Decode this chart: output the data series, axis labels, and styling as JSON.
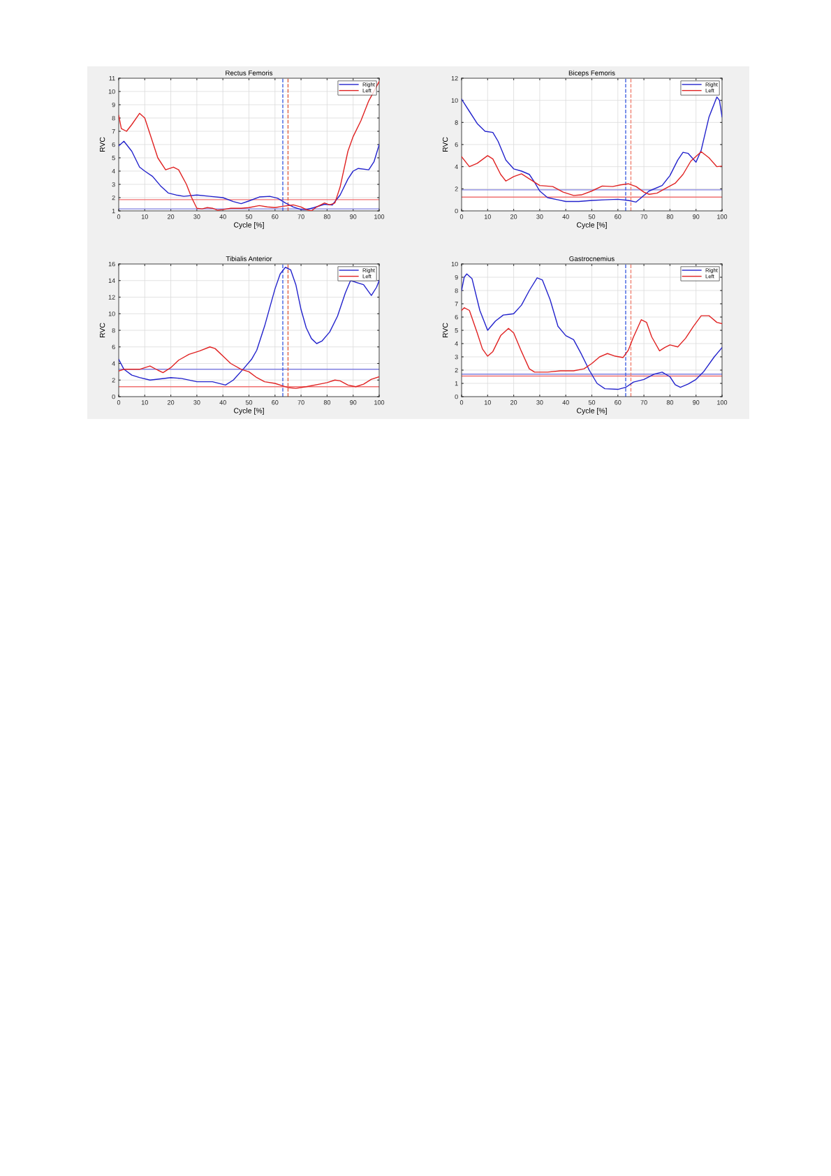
{
  "chart_data": [
    {
      "type": "line",
      "title": "Rectus Femoris",
      "xlabel": "Cycle [%]",
      "ylabel": "RVC",
      "xlim": [
        0,
        100
      ],
      "xticks": [
        0,
        10,
        20,
        30,
        40,
        50,
        60,
        70,
        80,
        90,
        100
      ],
      "ylim": [
        1,
        11
      ],
      "yticks": [
        1,
        2,
        3,
        4,
        5,
        6,
        7,
        8,
        9,
        10,
        11
      ],
      "grid": true,
      "legend": "top right",
      "line_style": "solid",
      "marker": "none",
      "series": [
        {
          "name": "Right",
          "color": "#2222cc",
          "x": [
            0,
            2,
            5,
            8,
            10,
            13,
            16,
            19,
            22,
            25,
            30,
            35,
            40,
            44,
            47,
            50,
            54,
            58,
            61,
            64,
            67,
            70,
            72,
            75,
            79,
            82,
            85,
            88,
            90,
            92,
            96,
            98,
            100
          ],
          "values": [
            5.9,
            6.25,
            5.5,
            4.3,
            4.0,
            3.6,
            2.9,
            2.35,
            2.2,
            2.1,
            2.2,
            2.1,
            2.0,
            1.7,
            1.55,
            1.75,
            2.05,
            2.1,
            1.95,
            1.6,
            1.3,
            1.1,
            1.1,
            1.25,
            1.5,
            1.45,
            2.2,
            3.4,
            4.0,
            4.2,
            4.1,
            4.7,
            6.0
          ]
        },
        {
          "name": "Left",
          "color": "#e02222",
          "x": [
            0,
            1,
            3,
            5,
            8,
            10,
            12,
            15,
            18,
            21,
            23,
            26,
            28,
            30,
            32,
            34,
            36,
            38,
            40,
            43,
            47,
            50,
            54,
            57,
            60,
            63,
            67,
            70,
            72,
            74,
            76,
            79,
            81,
            83,
            85,
            88,
            90,
            93,
            96,
            100
          ],
          "values": [
            8.2,
            7.2,
            7.0,
            7.5,
            8.35,
            8.0,
            6.8,
            5.0,
            4.1,
            4.3,
            4.1,
            3.0,
            2.0,
            1.2,
            1.15,
            1.25,
            1.2,
            1.05,
            1.1,
            1.2,
            1.2,
            1.25,
            1.4,
            1.3,
            1.25,
            1.35,
            1.45,
            1.3,
            1.1,
            1.0,
            1.3,
            1.6,
            1.45,
            1.6,
            2.8,
            5.5,
            6.6,
            7.8,
            9.3,
            10.75
          ]
        }
      ],
      "ref_lines": [
        {
          "axis": "y",
          "value": 1.85,
          "color": "#f07070",
          "line_style": "solid"
        },
        {
          "axis": "y",
          "value": 1.15,
          "color": "#8080e0",
          "line_style": "solid"
        },
        {
          "axis": "x",
          "value": 63,
          "color": "#4060e0",
          "line_style": "dashed"
        },
        {
          "axis": "x",
          "value": 65,
          "color": "#e06040",
          "line_style": "dashed"
        }
      ]
    },
    {
      "type": "line",
      "title": "Biceps Femoris",
      "xlabel": "Cycle [%]",
      "ylabel": "RVC",
      "xlim": [
        0,
        100
      ],
      "xticks": [
        0,
        10,
        20,
        30,
        40,
        50,
        60,
        70,
        80,
        90,
        100
      ],
      "ylim": [
        0,
        12
      ],
      "yticks": [
        0,
        2,
        4,
        6,
        8,
        10,
        12
      ],
      "grid": true,
      "legend": "top right",
      "line_style": "solid",
      "marker": "none",
      "series": [
        {
          "name": "Right",
          "color": "#2222cc",
          "x": [
            0,
            3,
            6,
            9,
            12,
            14,
            17,
            20,
            23,
            26,
            28,
            30,
            33,
            37,
            40,
            45,
            50,
            55,
            60,
            64,
            67,
            69,
            72,
            77,
            80,
            83,
            85,
            87,
            90,
            92,
            95,
            98,
            99,
            100
          ],
          "values": [
            10.1,
            9.0,
            7.9,
            7.2,
            7.1,
            6.3,
            4.6,
            3.8,
            3.6,
            3.3,
            2.6,
            1.8,
            1.2,
            1.0,
            0.85,
            0.85,
            0.95,
            1.0,
            1.05,
            0.95,
            0.8,
            1.2,
            1.8,
            2.3,
            3.2,
            4.6,
            5.3,
            5.2,
            4.4,
            5.5,
            8.5,
            10.3,
            10.0,
            8.5
          ]
        },
        {
          "name": "Left",
          "color": "#e02222",
          "x": [
            0,
            3,
            6,
            10,
            12,
            15,
            17,
            20,
            23,
            26,
            28,
            30,
            35,
            39,
            43,
            46,
            50,
            54,
            58,
            61,
            64,
            67,
            70,
            72,
            75,
            78,
            82,
            85,
            88,
            92,
            95,
            98,
            100
          ],
          "values": [
            4.9,
            4.0,
            4.3,
            5.0,
            4.7,
            3.3,
            2.7,
            3.1,
            3.35,
            2.9,
            2.6,
            2.3,
            2.2,
            1.7,
            1.4,
            1.45,
            1.8,
            2.25,
            2.2,
            2.35,
            2.45,
            2.2,
            1.7,
            1.5,
            1.6,
            2.0,
            2.5,
            3.3,
            4.5,
            5.35,
            4.8,
            4.0,
            4.05
          ]
        }
      ],
      "ref_lines": [
        {
          "axis": "y",
          "value": 1.9,
          "color": "#8080e0",
          "line_style": "solid"
        },
        {
          "axis": "y",
          "value": 1.25,
          "color": "#f07070",
          "line_style": "solid"
        },
        {
          "axis": "x",
          "value": 63,
          "color": "#4060e0",
          "line_style": "dashed"
        },
        {
          "axis": "x",
          "value": 65,
          "color": "#f08070",
          "line_style": "dashed"
        }
      ]
    },
    {
      "type": "line",
      "title": "Tibialis Anterior",
      "xlabel": "Cycle [%]",
      "ylabel": "RVC",
      "xlim": [
        0,
        100
      ],
      "xticks": [
        0,
        10,
        20,
        30,
        40,
        50,
        60,
        70,
        80,
        90,
        100
      ],
      "ylim": [
        0,
        16
      ],
      "yticks": [
        0,
        2,
        4,
        6,
        8,
        10,
        12,
        14,
        16
      ],
      "grid": true,
      "legend": "top right",
      "line_style": "solid",
      "marker": "none",
      "series": [
        {
          "name": "Right",
          "color": "#2222cc",
          "x": [
            0,
            2,
            5,
            8,
            12,
            15,
            20,
            24,
            30,
            36,
            41,
            44,
            48,
            51,
            53,
            56,
            60,
            62,
            64,
            66,
            68,
            70,
            72,
            74,
            76,
            78,
            81,
            84,
            87,
            89,
            94,
            97,
            99,
            100
          ],
          "values": [
            4.5,
            3.3,
            2.6,
            2.3,
            2.0,
            2.1,
            2.3,
            2.2,
            1.8,
            1.8,
            1.4,
            2.0,
            3.4,
            4.5,
            5.6,
            8.5,
            13.0,
            14.8,
            15.6,
            15.3,
            13.5,
            10.5,
            8.3,
            7.0,
            6.4,
            6.7,
            7.8,
            9.7,
            12.5,
            14.0,
            13.5,
            12.2,
            13.2,
            14.0
          ]
        },
        {
          "name": "Left",
          "color": "#e02222",
          "x": [
            0,
            2,
            5,
            8,
            12,
            15,
            17,
            20,
            23,
            27,
            31,
            35,
            37,
            40,
            43,
            47,
            50,
            53,
            56,
            60,
            63,
            65,
            68,
            72,
            77,
            80,
            83,
            85,
            88,
            91,
            94,
            97,
            100
          ],
          "values": [
            3.1,
            3.3,
            3.3,
            3.3,
            3.7,
            3.2,
            2.9,
            3.5,
            4.4,
            5.1,
            5.5,
            6.0,
            5.8,
            4.9,
            4.0,
            3.3,
            3.0,
            2.3,
            1.8,
            1.6,
            1.3,
            1.1,
            1.0,
            1.2,
            1.5,
            1.7,
            2.0,
            1.9,
            1.4,
            1.2,
            1.5,
            2.1,
            2.4
          ]
        }
      ],
      "ref_lines": [
        {
          "axis": "y",
          "value": 3.3,
          "color": "#8080e0",
          "line_style": "solid"
        },
        {
          "axis": "y",
          "value": 1.2,
          "color": "#f07070",
          "line_style": "solid"
        },
        {
          "axis": "x",
          "value": 63,
          "color": "#4060e0",
          "line_style": "dashed"
        },
        {
          "axis": "x",
          "value": 65,
          "color": "#e06040",
          "line_style": "dashed"
        }
      ]
    },
    {
      "type": "line",
      "title": "Gastrocnemius",
      "xlabel": "Cycle [%]",
      "ylabel": "RVC",
      "xlim": [
        0,
        100
      ],
      "xticks": [
        0,
        10,
        20,
        30,
        40,
        50,
        60,
        70,
        80,
        90,
        100
      ],
      "ylim": [
        0,
        10
      ],
      "yticks": [
        0,
        1,
        2,
        3,
        4,
        5,
        6,
        7,
        8,
        9,
        10
      ],
      "grid": true,
      "legend": "top right",
      "line_style": "solid",
      "marker": "none",
      "series": [
        {
          "name": "Right",
          "color": "#2222cc",
          "x": [
            0,
            1,
            2,
            4,
            7,
            10,
            13,
            16,
            18,
            20,
            23,
            26,
            29,
            31,
            34,
            37,
            40,
            43,
            46,
            49,
            52,
            55,
            60,
            63,
            66,
            70,
            74,
            77,
            80,
            82,
            84,
            87,
            90,
            93,
            97,
            100
          ],
          "values": [
            8.0,
            9.0,
            9.25,
            8.9,
            6.5,
            5.0,
            5.7,
            6.15,
            6.2,
            6.25,
            6.9,
            8.0,
            8.95,
            8.8,
            7.3,
            5.3,
            4.6,
            4.3,
            3.2,
            2.0,
            1.0,
            0.6,
            0.55,
            0.7,
            1.1,
            1.3,
            1.7,
            1.85,
            1.5,
            0.9,
            0.7,
            0.95,
            1.3,
            1.9,
            3.0,
            3.7
          ]
        },
        {
          "name": "Left",
          "color": "#e02222",
          "x": [
            0,
            1,
            3,
            6,
            8,
            10,
            12,
            15,
            18,
            20,
            23,
            26,
            28,
            33,
            38,
            43,
            47,
            50,
            53,
            56,
            59,
            62,
            64,
            66,
            69,
            71,
            73,
            76,
            78,
            80,
            83,
            86,
            89,
            92,
            95,
            98,
            100
          ],
          "values": [
            6.5,
            6.7,
            6.5,
            4.8,
            3.6,
            3.05,
            3.4,
            4.6,
            5.15,
            4.8,
            3.4,
            2.1,
            1.85,
            1.85,
            1.95,
            1.95,
            2.1,
            2.5,
            3.0,
            3.25,
            3.05,
            2.95,
            3.5,
            4.5,
            5.8,
            5.6,
            4.5,
            3.45,
            3.7,
            3.9,
            3.75,
            4.4,
            5.3,
            6.1,
            6.1,
            5.6,
            5.5
          ]
        }
      ],
      "ref_lines": [
        {
          "axis": "y",
          "value": 1.7,
          "color": "#8080e0",
          "line_style": "solid"
        },
        {
          "axis": "y",
          "value": 1.55,
          "color": "#f07070",
          "line_style": "solid"
        },
        {
          "axis": "x",
          "value": 63,
          "color": "#4060e0",
          "line_style": "dashed"
        },
        {
          "axis": "x",
          "value": 65,
          "color": "#f08070",
          "line_style": "dashed"
        }
      ]
    }
  ]
}
